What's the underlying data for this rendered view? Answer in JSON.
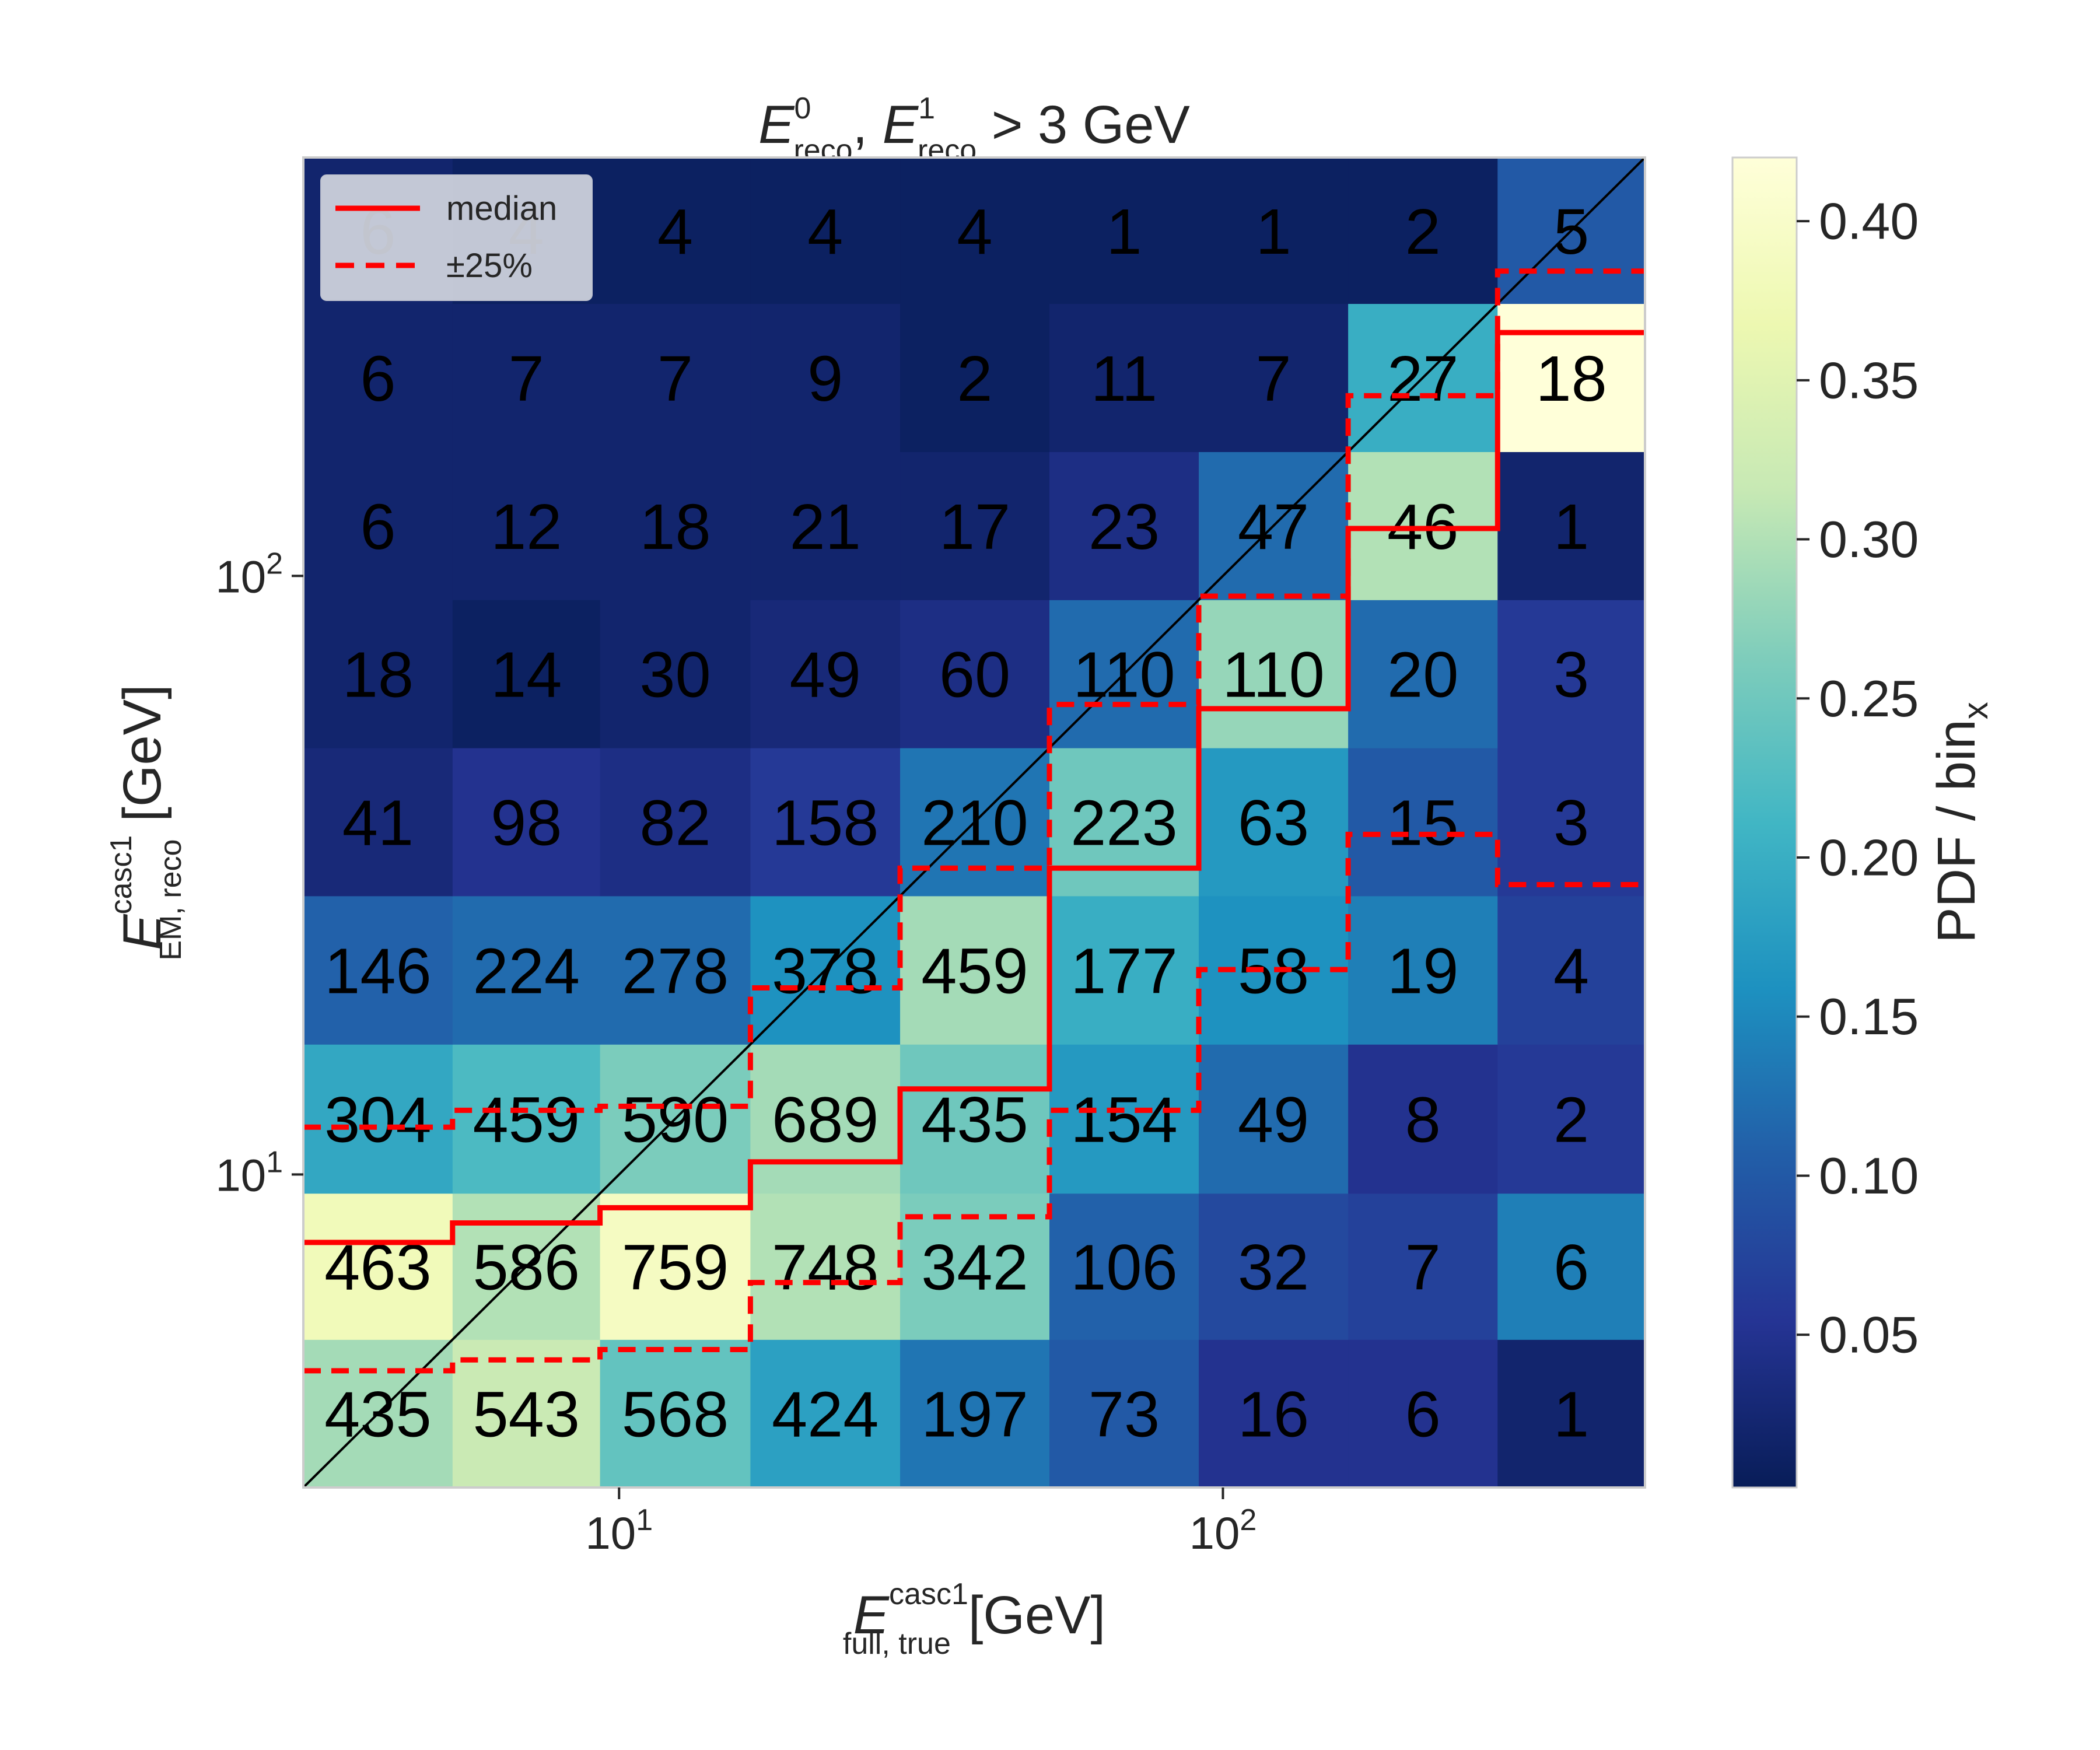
{
  "chart_data": {
    "type": "heatmap",
    "title": "E^0_reco, E^1_reco > 3 GeV",
    "title_parts": {
      "e0": "E",
      "e0_sup": "0",
      "e0_sub": "reco",
      "sep": ", ",
      "e1": "E",
      "e1_sup": "1",
      "e1_sub": "reco",
      "tail": " > 3 GeV"
    },
    "xlabel": {
      "main": "E",
      "sup": "casc1",
      "sub": "full, true",
      "unit": "[GeV]"
    },
    "ylabel": {
      "main": "E",
      "sup": "casc1",
      "sub": "EM, reco",
      "unit": "[GeV]"
    },
    "x_scale": "log",
    "y_scale": "log",
    "xlim": [
      3,
      500
    ],
    "ylim": [
      3,
      500
    ],
    "x_bin_edges": [
      3,
      5.3,
      9.3,
      16.5,
      29.2,
      51.6,
      91.2,
      161.2,
      285,
      500
    ],
    "y_bin_edges": [
      3,
      5.3,
      9.3,
      16.5,
      29.2,
      51.6,
      91.2,
      161.2,
      285,
      500
    ],
    "x_ticks": [
      {
        "value": 10,
        "base": "10",
        "exp": "1"
      },
      {
        "value": 100,
        "base": "10",
        "exp": "2"
      }
    ],
    "y_ticks": [
      {
        "value": 10,
        "base": "10",
        "exp": "1"
      },
      {
        "value": 100,
        "base": "10",
        "exp": "2"
      }
    ],
    "counts": [
      [
        435,
        543,
        568,
        424,
        197,
        73,
        16,
        6,
        1
      ],
      [
        463,
        586,
        759,
        748,
        342,
        106,
        32,
        7,
        6
      ],
      [
        304,
        459,
        590,
        689,
        435,
        154,
        49,
        8,
        2
      ],
      [
        146,
        224,
        278,
        378,
        459,
        177,
        58,
        19,
        4
      ],
      [
        41,
        98,
        82,
        158,
        210,
        223,
        63,
        15,
        3
      ],
      [
        18,
        14,
        30,
        49,
        60,
        110,
        110,
        20,
        3
      ],
      [
        6,
        12,
        18,
        21,
        17,
        23,
        47,
        46,
        1
      ],
      [
        6,
        7,
        7,
        9,
        2,
        11,
        7,
        27,
        18
      ],
      [
        6,
        4,
        4,
        4,
        4,
        1,
        1,
        2,
        5
      ]
    ],
    "pdf_per_bin_x": [
      [
        0.29,
        0.32,
        0.24,
        0.18,
        0.13,
        0.1,
        0.05,
        0.05,
        0.02
      ],
      [
        0.38,
        0.3,
        0.39,
        0.3,
        0.26,
        0.11,
        0.08,
        0.07,
        0.14
      ],
      [
        0.19,
        0.22,
        0.26,
        0.29,
        0.25,
        0.17,
        0.12,
        0.05,
        0.06
      ],
      [
        0.11,
        0.12,
        0.12,
        0.16,
        0.29,
        0.2,
        0.16,
        0.14,
        0.07
      ],
      [
        0.03,
        0.05,
        0.04,
        0.06,
        0.13,
        0.25,
        0.17,
        0.1,
        0.06
      ],
      [
        0.02,
        0.01,
        0.02,
        0.03,
        0.04,
        0.12,
        0.28,
        0.12,
        0.06
      ],
      [
        0.02,
        0.02,
        0.02,
        0.02,
        0.02,
        0.04,
        0.12,
        0.3,
        0.02
      ],
      [
        0.02,
        0.02,
        0.02,
        0.02,
        0.01,
        0.02,
        0.02,
        0.2,
        0.42
      ],
      [
        0.02,
        0.01,
        0.01,
        0.01,
        0.01,
        0.01,
        0.01,
        0.01,
        0.1
      ]
    ],
    "median": [
      7.7,
      8.3,
      8.8,
      10.5,
      13.9,
      32.5,
      60.0,
      120.0,
      255.0
    ],
    "lower_25pct": [
      4.7,
      4.9,
      5.1,
      6.6,
      8.5,
      12.8,
      22.0,
      37.0,
      30.5
    ],
    "upper_25pct": [
      12.0,
      12.8,
      13.0,
      20.5,
      32.5,
      61.0,
      92.5,
      200.0,
      323.0
    ],
    "diagonal": true,
    "colormap": "YlGnBu",
    "colorbar": {
      "label": "PDF / bin",
      "label_sub": "x",
      "range": [
        0.002,
        0.42
      ],
      "ticks": [
        "0.05",
        "0.10",
        "0.15",
        "0.20",
        "0.25",
        "0.30",
        "0.35",
        "0.40"
      ]
    },
    "legend": {
      "placement": "top-left",
      "entries": [
        {
          "label": "median",
          "color": "#ff0000",
          "style": "solid"
        },
        {
          "label": "±25%",
          "color": "#ff0000",
          "style": "dashed"
        }
      ]
    },
    "grid": false
  }
}
